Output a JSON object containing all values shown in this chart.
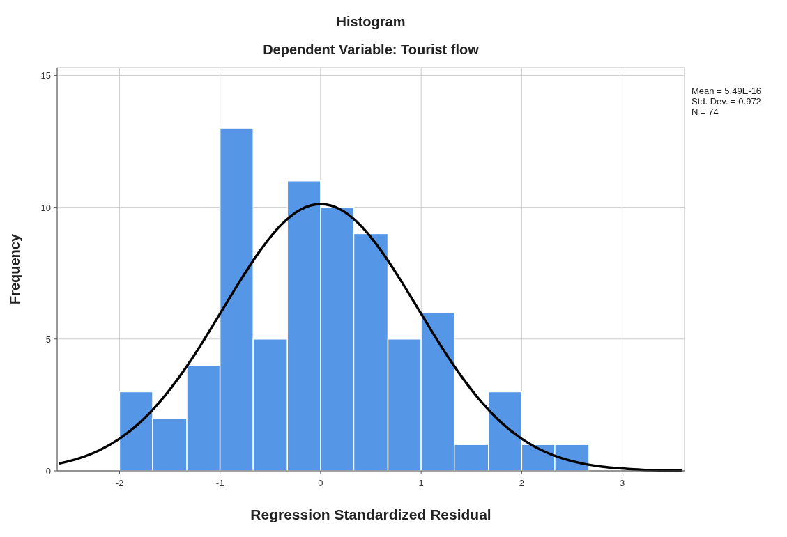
{
  "chart_data": {
    "type": "histogram",
    "title": "Histogram",
    "subtitle": "Dependent Variable: Tourist flow",
    "xlabel": "Regression Standardized Residual",
    "ylabel": "Frequency",
    "bins": [
      -2,
      -1.67,
      -1.33,
      -1,
      -0.67,
      -0.33,
      0,
      0.33,
      0.67,
      1,
      1.33,
      1.67,
      2,
      2.33,
      2.67
    ],
    "series": [
      {
        "color": "#5596e6",
        "values": [
          3,
          2,
          4,
          13,
          5,
          11,
          10,
          9,
          5,
          6,
          1,
          3,
          1,
          1
        ]
      },
      {
        "type": "line",
        "color": "#000000",
        "x": [
          -2.6,
          -2.4,
          -2.2,
          -2,
          -1.8,
          -1.6,
          -1.4,
          -1.2,
          -1,
          -0.8,
          -0.6,
          -0.4,
          -0.2,
          0,
          0.2,
          0.4,
          0.6,
          0.8,
          1,
          1.2,
          1.4,
          1.6,
          1.8,
          2,
          2.2,
          2.4,
          2.6,
          2.8,
          3,
          3.2,
          3.4,
          3.6
        ],
        "values": [
          0.28,
          0.48,
          0.78,
          1.22,
          1.82,
          2.61,
          3.59,
          4.72,
          5.96,
          7.21,
          8.36,
          9.3,
          9.91,
          10.12,
          9.91,
          9.3,
          8.36,
          7.21,
          5.96,
          4.72,
          3.59,
          2.61,
          1.82,
          1.22,
          0.78,
          0.48,
          0.28,
          0.16,
          0.09,
          0.04,
          0.02,
          0.01
        ]
      }
    ],
    "xlim": [
      -2.62,
      3.62
    ],
    "xticks": [
      -2,
      -1,
      0,
      1,
      2,
      3
    ],
    "ylim": [
      0,
      15.3
    ],
    "yticks": [
      0,
      5,
      10,
      15
    ],
    "grid": true,
    "marker": "none",
    "line_style": "solid",
    "annotations": [
      "Mean = 5.49E-16",
      "Std. Dev. = 0.972",
      "N = 74"
    ]
  }
}
